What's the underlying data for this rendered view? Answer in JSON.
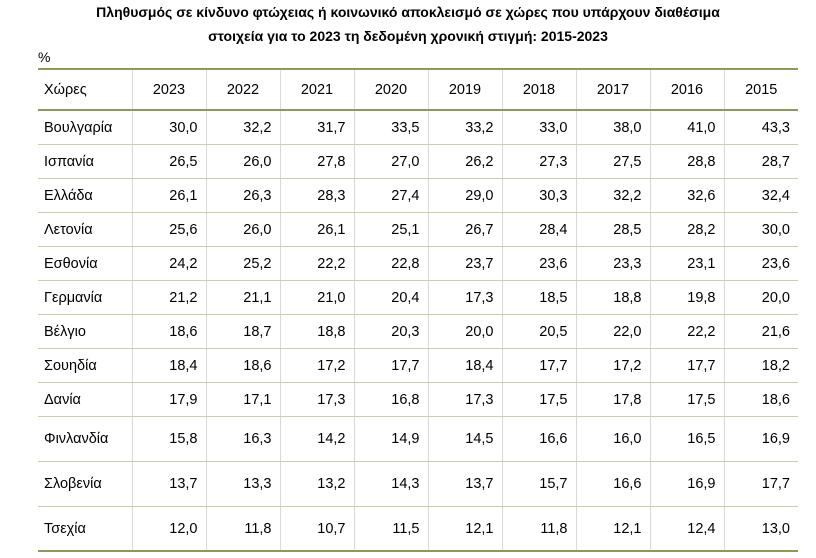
{
  "title": [
    "Πληθυσμός σε κίνδυνο φτώχειας ή κοινωνικό αποκλεισμό σε χώρες που υπάρχουν διαθέσιμα",
    "στοιχεία για το 2023 τη δεδομένη χρονική στιγμή: 2015-2023"
  ],
  "unit": "%",
  "table": {
    "header": [
      "Χώρες",
      "2023",
      "2022",
      "2021",
      "2020",
      "2019",
      "2018",
      "2017",
      "2016",
      "2015"
    ],
    "rows": [
      [
        "Βουλγαρία",
        "30,0",
        "32,2",
        "31,7",
        "33,5",
        "33,2",
        "33,0",
        "38,0",
        "41,0",
        "43,3"
      ],
      [
        "Ισπανία",
        "26,5",
        "26,0",
        "27,8",
        "27,0",
        "26,2",
        "27,3",
        "27,5",
        "28,8",
        "28,7"
      ],
      [
        "Ελλάδα",
        "26,1",
        "26,3",
        "28,3",
        "27,4",
        "29,0",
        "30,3",
        "32,2",
        "32,6",
        "32,4"
      ],
      [
        "Λετονία",
        "25,6",
        "26,0",
        "26,1",
        "25,1",
        "26,7",
        "28,4",
        "28,5",
        "28,2",
        "30,0"
      ],
      [
        "Εσθονία",
        "24,2",
        "25,2",
        "22,2",
        "22,8",
        "23,7",
        "23,6",
        "23,3",
        "23,1",
        "23,6"
      ],
      [
        "Γερμανία",
        "21,2",
        "21,1",
        "21,0",
        "20,4",
        "17,3",
        "18,5",
        "18,8",
        "19,8",
        "20,0"
      ],
      [
        "Βέλγιο",
        "18,6",
        "18,7",
        "18,8",
        "20,3",
        "20,0",
        "20,5",
        "22,0",
        "22,2",
        "21,6"
      ],
      [
        "Σουηδία",
        "18,4",
        "18,6",
        "17,2",
        "17,7",
        "18,4",
        "17,7",
        "17,2",
        "17,7",
        "18,2"
      ],
      [
        "Δανία",
        "17,9",
        "17,1",
        "17,3",
        "16,8",
        "17,3",
        "17,5",
        "17,8",
        "17,5",
        "18,6"
      ],
      [
        "Φινλανδία",
        "15,8",
        "16,3",
        "14,2",
        "14,9",
        "14,5",
        "16,6",
        "16,0",
        "16,5",
        "16,9"
      ],
      [
        "Σλοβενία",
        "13,7",
        "13,3",
        "13,2",
        "14,3",
        "13,7",
        "15,7",
        "16,6",
        "16,9",
        "17,7"
      ],
      [
        "Τσεχία",
        "12,0",
        "11,8",
        "10,7",
        "11,5",
        "12,1",
        "11,8",
        "12,1",
        "12,4",
        "13,0"
      ]
    ]
  }
}
